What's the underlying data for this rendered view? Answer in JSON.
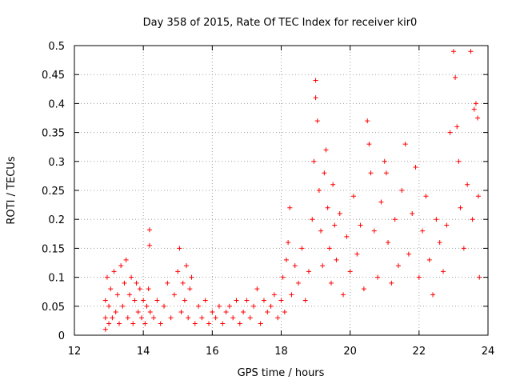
{
  "chart_data": {
    "type": "scatter",
    "title": "Day 358 of 2015, Rate Of TEC Index for receiver kir0",
    "xlabel": "GPS time / hours",
    "ylabel": "ROTI / TECUs",
    "xlim": [
      12,
      24
    ],
    "ylim": [
      0,
      0.5
    ],
    "xticks": [
      "12",
      "14",
      "16",
      "18",
      "20",
      "22",
      "24"
    ],
    "yticks": [
      "0",
      "0.05",
      "0.1",
      "0.15",
      "0.2",
      "0.25",
      "0.3",
      "0.35",
      "0.4",
      "0.45",
      "0.5"
    ],
    "grid": true,
    "marker": "+",
    "color": "#ff0000",
    "series": [
      {
        "name": "ROTI",
        "points": [
          [
            12.9,
            0.01
          ],
          [
            12.9,
            0.03
          ],
          [
            12.9,
            0.06
          ],
          [
            12.95,
            0.1
          ],
          [
            13.0,
            0.02
          ],
          [
            13.0,
            0.05
          ],
          [
            13.05,
            0.08
          ],
          [
            13.1,
            0.03
          ],
          [
            13.15,
            0.11
          ],
          [
            13.2,
            0.04
          ],
          [
            13.25,
            0.07
          ],
          [
            13.3,
            0.02
          ],
          [
            13.35,
            0.12
          ],
          [
            13.4,
            0.05
          ],
          [
            13.45,
            0.09
          ],
          [
            13.5,
            0.13
          ],
          [
            13.55,
            0.03
          ],
          [
            13.6,
            0.07
          ],
          [
            13.65,
            0.1
          ],
          [
            13.7,
            0.02
          ],
          [
            13.75,
            0.06
          ],
          [
            13.8,
            0.09
          ],
          [
            13.85,
            0.04
          ],
          [
            13.9,
            0.08
          ],
          [
            13.95,
            0.03
          ],
          [
            14.0,
            0.06
          ],
          [
            14.05,
            0.02
          ],
          [
            14.1,
            0.05
          ],
          [
            14.15,
            0.08
          ],
          [
            14.18,
            0.182
          ],
          [
            14.18,
            0.155
          ],
          [
            14.2,
            0.04
          ],
          [
            14.3,
            0.03
          ],
          [
            14.4,
            0.06
          ],
          [
            14.5,
            0.02
          ],
          [
            14.6,
            0.05
          ],
          [
            14.7,
            0.09
          ],
          [
            14.8,
            0.03
          ],
          [
            14.9,
            0.07
          ],
          [
            15.0,
            0.11
          ],
          [
            15.05,
            0.15
          ],
          [
            15.1,
            0.04
          ],
          [
            15.15,
            0.09
          ],
          [
            15.2,
            0.06
          ],
          [
            15.25,
            0.12
          ],
          [
            15.3,
            0.03
          ],
          [
            15.35,
            0.08
          ],
          [
            15.4,
            0.1
          ],
          [
            15.5,
            0.02
          ],
          [
            15.6,
            0.05
          ],
          [
            15.7,
            0.03
          ],
          [
            15.8,
            0.06
          ],
          [
            15.9,
            0.02
          ],
          [
            16.0,
            0.04
          ],
          [
            16.1,
            0.03
          ],
          [
            16.2,
            0.05
          ],
          [
            16.3,
            0.02
          ],
          [
            16.4,
            0.04
          ],
          [
            16.5,
            0.05
          ],
          [
            16.6,
            0.03
          ],
          [
            16.7,
            0.06
          ],
          [
            16.8,
            0.02
          ],
          [
            16.9,
            0.04
          ],
          [
            17.0,
            0.06
          ],
          [
            17.1,
            0.03
          ],
          [
            17.2,
            0.05
          ],
          [
            17.3,
            0.08
          ],
          [
            17.4,
            0.02
          ],
          [
            17.5,
            0.06
          ],
          [
            17.6,
            0.04
          ],
          [
            17.7,
            0.05
          ],
          [
            17.8,
            0.07
          ],
          [
            17.9,
            0.03
          ],
          [
            18.0,
            0.06
          ],
          [
            18.05,
            0.1
          ],
          [
            18.1,
            0.04
          ],
          [
            18.15,
            0.13
          ],
          [
            18.2,
            0.16
          ],
          [
            18.25,
            0.22
          ],
          [
            18.3,
            0.07
          ],
          [
            18.4,
            0.12
          ],
          [
            18.5,
            0.09
          ],
          [
            18.6,
            0.15
          ],
          [
            18.7,
            0.06
          ],
          [
            18.8,
            0.11
          ],
          [
            18.9,
            0.2
          ],
          [
            18.95,
            0.3
          ],
          [
            19.0,
            0.44
          ],
          [
            19.0,
            0.41
          ],
          [
            19.05,
            0.37
          ],
          [
            19.1,
            0.25
          ],
          [
            19.15,
            0.18
          ],
          [
            19.2,
            0.12
          ],
          [
            19.25,
            0.28
          ],
          [
            19.3,
            0.32
          ],
          [
            19.35,
            0.22
          ],
          [
            19.4,
            0.15
          ],
          [
            19.45,
            0.09
          ],
          [
            19.5,
            0.26
          ],
          [
            19.55,
            0.19
          ],
          [
            19.6,
            0.13
          ],
          [
            19.7,
            0.21
          ],
          [
            19.8,
            0.07
          ],
          [
            19.9,
            0.17
          ],
          [
            20.0,
            0.11
          ],
          [
            20.1,
            0.24
          ],
          [
            20.2,
            0.14
          ],
          [
            20.3,
            0.19
          ],
          [
            20.4,
            0.08
          ],
          [
            20.5,
            0.37
          ],
          [
            20.55,
            0.33
          ],
          [
            20.6,
            0.28
          ],
          [
            20.7,
            0.18
          ],
          [
            20.8,
            0.1
          ],
          [
            20.9,
            0.23
          ],
          [
            21.0,
            0.3
          ],
          [
            21.05,
            0.28
          ],
          [
            21.1,
            0.16
          ],
          [
            21.2,
            0.09
          ],
          [
            21.3,
            0.2
          ],
          [
            21.4,
            0.12
          ],
          [
            21.5,
            0.25
          ],
          [
            21.6,
            0.33
          ],
          [
            21.7,
            0.14
          ],
          [
            21.8,
            0.21
          ],
          [
            21.9,
            0.29
          ],
          [
            22.0,
            0.1
          ],
          [
            22.1,
            0.18
          ],
          [
            22.2,
            0.24
          ],
          [
            22.3,
            0.13
          ],
          [
            22.4,
            0.07
          ],
          [
            22.5,
            0.2
          ],
          [
            22.6,
            0.16
          ],
          [
            22.7,
            0.11
          ],
          [
            22.8,
            0.19
          ],
          [
            22.9,
            0.35
          ],
          [
            23.0,
            0.49
          ],
          [
            23.05,
            0.445
          ],
          [
            23.1,
            0.36
          ],
          [
            23.15,
            0.3
          ],
          [
            23.2,
            0.22
          ],
          [
            23.3,
            0.15
          ],
          [
            23.4,
            0.26
          ],
          [
            23.5,
            0.49
          ],
          [
            23.55,
            0.2
          ],
          [
            23.6,
            0.39
          ],
          [
            23.65,
            0.4
          ],
          [
            23.7,
            0.375
          ],
          [
            23.72,
            0.24
          ],
          [
            23.75,
            0.1
          ]
        ]
      }
    ]
  }
}
